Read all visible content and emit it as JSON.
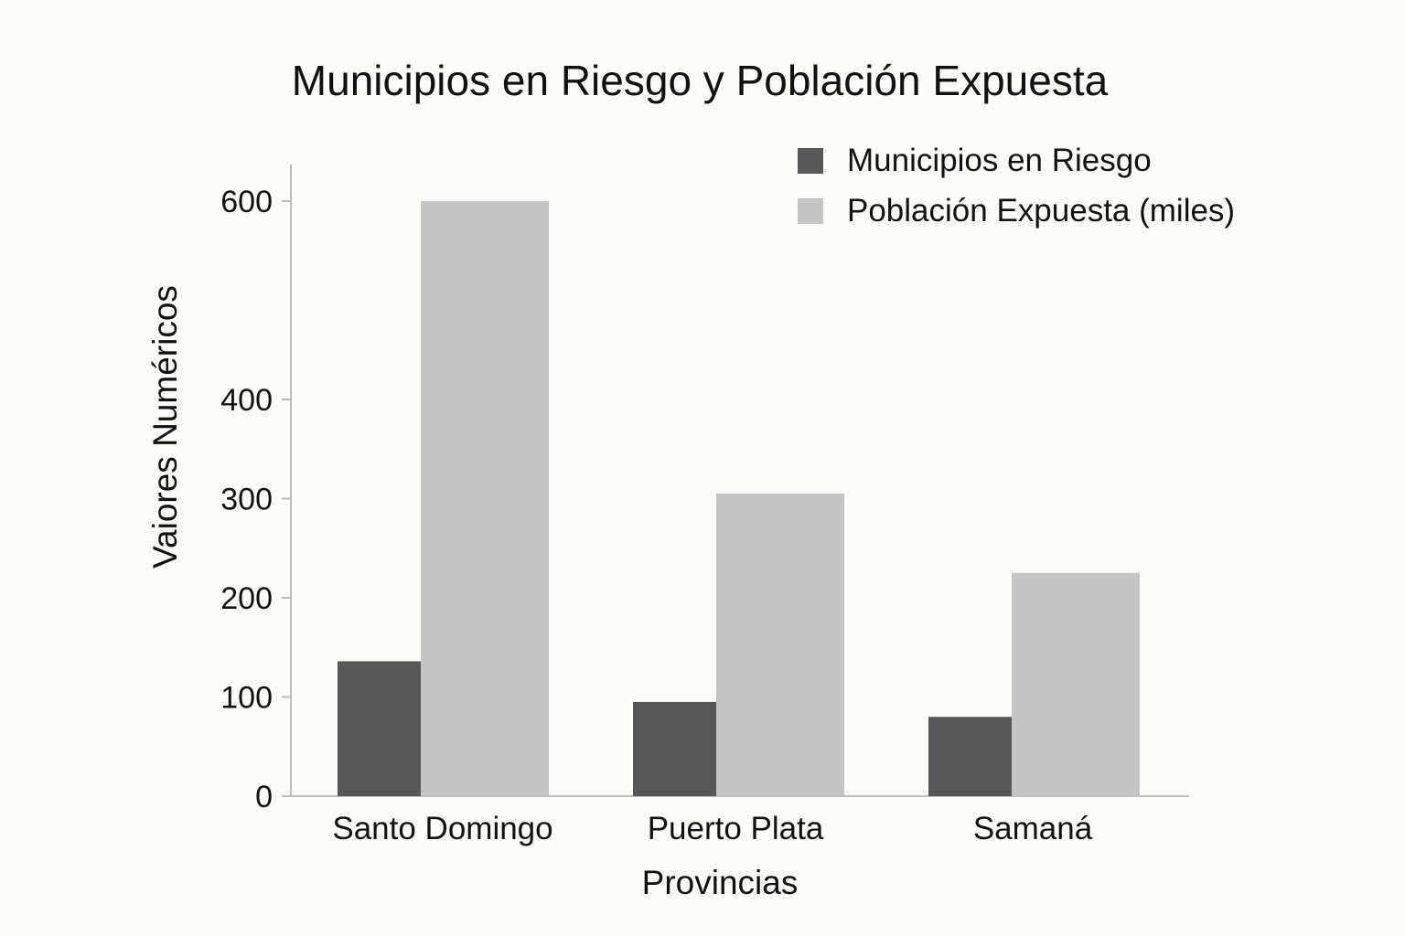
{
  "chart_data": {
    "type": "bar",
    "title": "Municipios en Riesgo y Población Expuesta",
    "xlabel": "Provincias",
    "ylabel": "Vaiores Numéricos",
    "categories": [
      "Santo Domingo",
      "Puerto Plata",
      "Samaná"
    ],
    "series": [
      {
        "name": "Municipios en Riesgo",
        "values": [
          136,
          95,
          80
        ],
        "color": "#58585a"
      },
      {
        "name": "Población Expuesta (miles)",
        "values": [
          600,
          305,
          225
        ],
        "color": "#c4c4c4"
      }
    ],
    "yticks": [
      0,
      100,
      200,
      300,
      400,
      600
    ],
    "ylim": [
      0,
      630
    ],
    "grid": false,
    "legend_position": "top-right"
  }
}
